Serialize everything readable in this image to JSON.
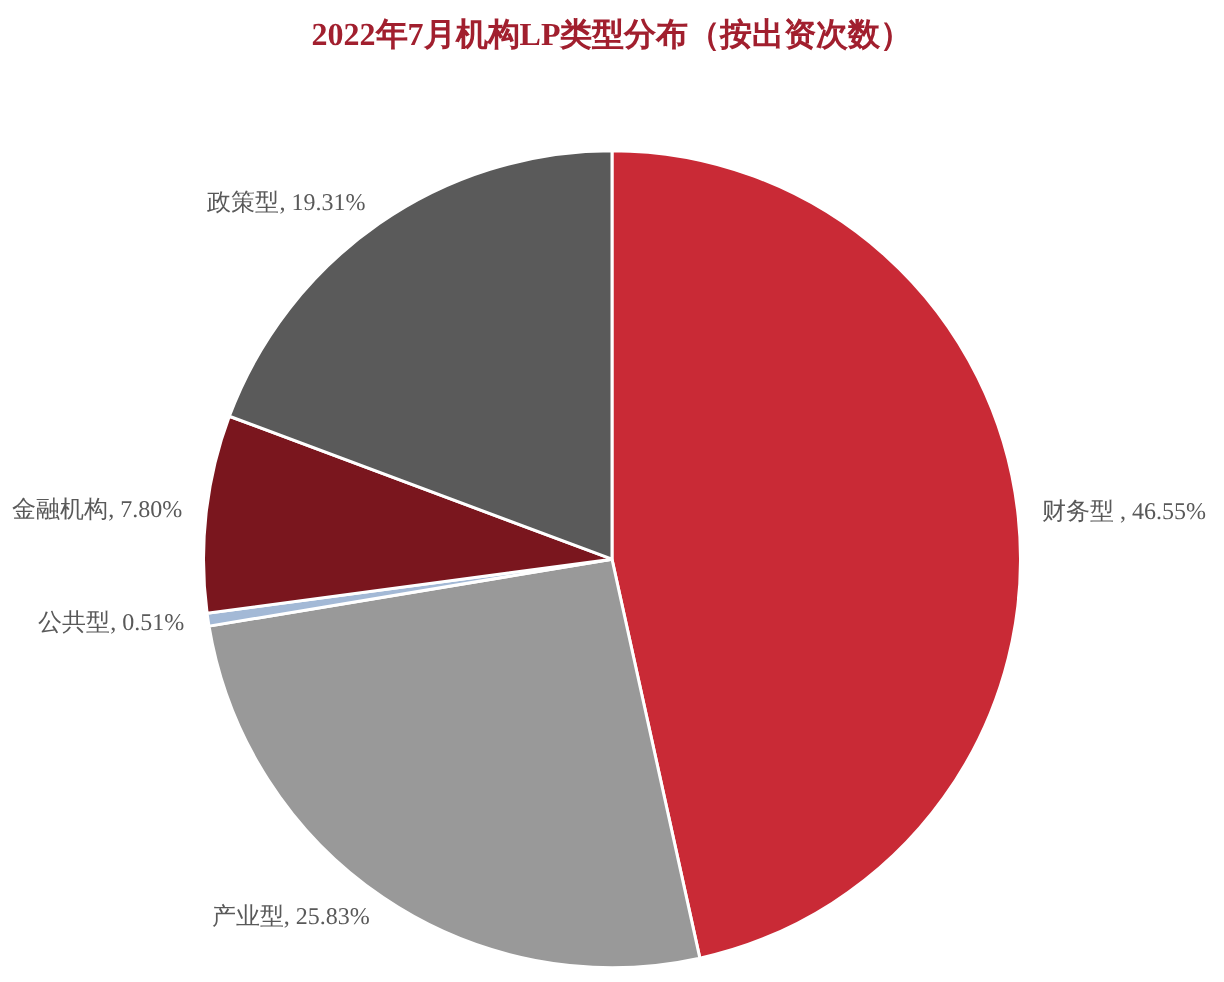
{
  "chart_data": {
    "type": "pie",
    "title": "2022年7月机构LP类型分布（按出资次数）",
    "categories": [
      "财务型",
      "产业型",
      "公共型",
      "金融机构",
      "政策型"
    ],
    "values": [
      46.55,
      25.83,
      0.51,
      7.8,
      19.31
    ],
    "colors": [
      "#c92a36",
      "#999999",
      "#a3b9d6",
      "#7a161e",
      "#5a5a5a"
    ],
    "value_labels": [
      " , 46.55%",
      ", 25.83%",
      ", 0.51%",
      ", 7.80%",
      ", 19.31%"
    ]
  }
}
